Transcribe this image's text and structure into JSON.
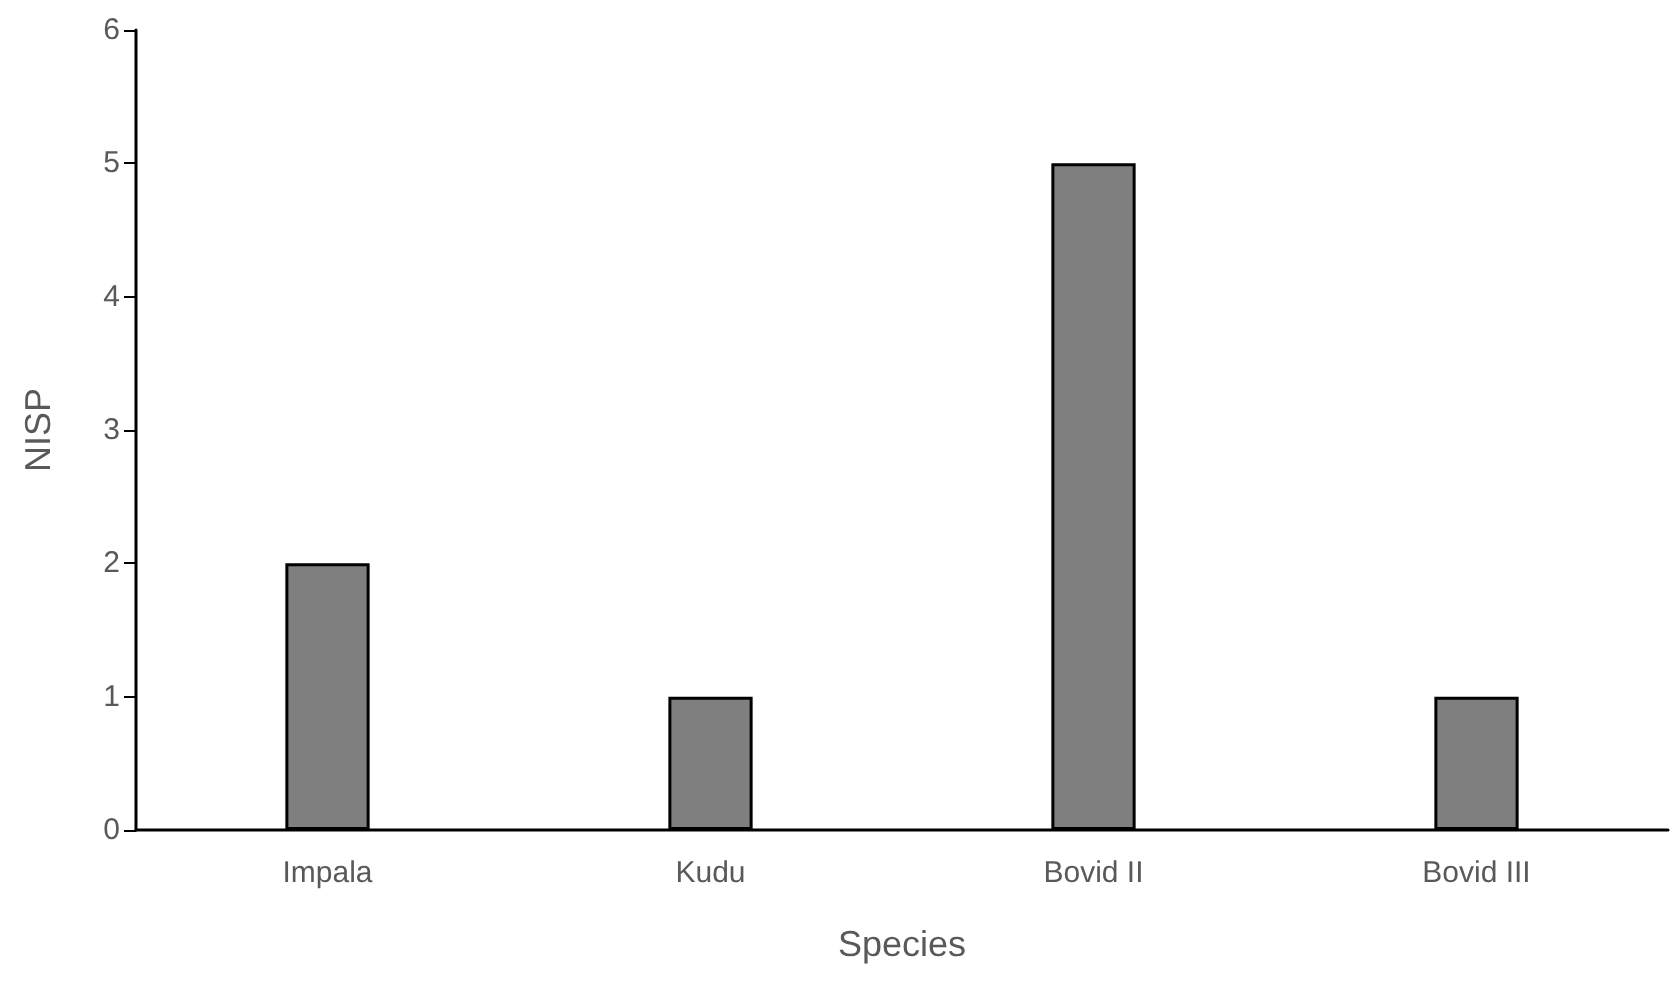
{
  "chart_data": {
    "type": "bar",
    "xlabel": "Species",
    "ylabel": "NISP",
    "categories": [
      "Impala",
      "Kudu",
      "Bovid II",
      "Bovid III"
    ],
    "values": [
      2,
      1,
      5,
      1
    ],
    "color": "#7f7f7f",
    "ylim": [
      0,
      6
    ],
    "yticks": [
      0,
      1,
      2,
      3,
      4,
      5,
      6
    ],
    "grid": false
  }
}
